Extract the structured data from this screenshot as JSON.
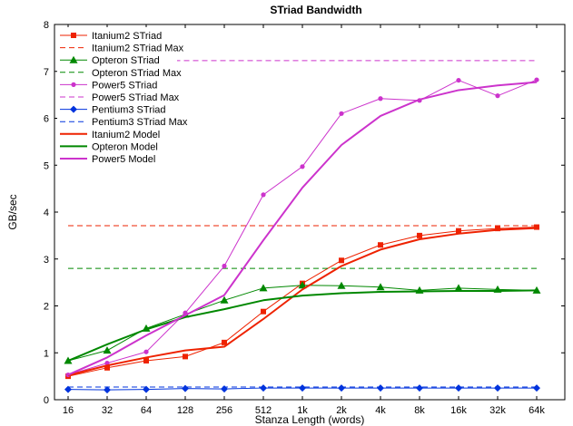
{
  "chart_data": {
    "type": "line",
    "title": "STriad Bandwidth",
    "xlabel": "Stanza Length (words)",
    "ylabel": "GB/sec",
    "categories": [
      "16",
      "32",
      "64",
      "128",
      "256",
      "512",
      "1k",
      "2k",
      "4k",
      "8k",
      "16k",
      "32k",
      "64k"
    ],
    "ylim": [
      0,
      8
    ],
    "yticks": [
      0,
      1,
      2,
      3,
      4,
      5,
      6,
      7,
      8
    ],
    "grid": false,
    "legend_position": "top-left",
    "series": [
      {
        "name": "Itanium2 STriad",
        "color": "#ee2200",
        "style": "solid",
        "width": 1,
        "marker": "square",
        "values": [
          0.5,
          0.68,
          0.83,
          0.92,
          1.22,
          1.88,
          2.48,
          2.97,
          3.3,
          3.5,
          3.6,
          3.65,
          3.68
        ]
      },
      {
        "name": "Itanium2 STriad Max",
        "color": "#ee2200",
        "style": "dashed",
        "width": 1,
        "marker": "none",
        "x_start_index": 0,
        "values": [
          3.71,
          3.71,
          3.71,
          3.71,
          3.71,
          3.71,
          3.71,
          3.71,
          3.71,
          3.71,
          3.71,
          3.71,
          3.71
        ]
      },
      {
        "name": "Opteron STriad",
        "color": "#008800",
        "style": "solid",
        "width": 1,
        "marker": "triangle",
        "values": [
          0.83,
          1.05,
          1.52,
          1.82,
          2.12,
          2.38,
          2.44,
          2.43,
          2.4,
          2.33,
          2.38,
          2.35,
          2.33
        ]
      },
      {
        "name": "Opteron STriad Max",
        "color": "#008800",
        "style": "dashed",
        "width": 1,
        "marker": "none",
        "values": [
          2.8,
          2.8,
          2.8,
          2.8,
          2.8,
          2.8,
          2.8,
          2.8,
          2.8,
          2.8,
          2.8,
          2.8,
          2.8
        ]
      },
      {
        "name": "Power5 STriad",
        "color": "#cc33cc",
        "style": "solid",
        "width": 1,
        "marker": "dot",
        "values": [
          0.53,
          0.78,
          1.02,
          1.85,
          2.85,
          4.37,
          4.97,
          6.1,
          6.42,
          6.38,
          6.81,
          6.48,
          6.82
        ]
      },
      {
        "name": "Power5 STriad Max",
        "color": "#cc33cc",
        "style": "dashed",
        "width": 1,
        "marker": "none",
        "x_start_index": 2.5,
        "values": [
          7.23,
          7.23,
          7.23,
          7.23,
          7.23,
          7.23,
          7.23,
          7.23,
          7.23,
          7.23,
          7.23,
          7.23,
          7.23
        ]
      },
      {
        "name": "Pentium3 STriad",
        "color": "#0033dd",
        "style": "solid",
        "width": 1,
        "marker": "diamond",
        "values": [
          0.22,
          0.21,
          0.22,
          0.24,
          0.23,
          0.25,
          0.25,
          0.25,
          0.25,
          0.25,
          0.25,
          0.25,
          0.25
        ]
      },
      {
        "name": "Pentium3 STriad Max",
        "color": "#0033dd",
        "style": "dashed",
        "width": 1,
        "marker": "none",
        "values": [
          0.27,
          0.27,
          0.27,
          0.27,
          0.27,
          0.27,
          0.27,
          0.27,
          0.27,
          0.27,
          0.27,
          0.27,
          0.27
        ]
      },
      {
        "name": "Itanium2 Model",
        "color": "#ee2200",
        "style": "solid",
        "width": 2,
        "marker": "none",
        "values": [
          0.52,
          0.73,
          0.9,
          1.05,
          1.13,
          1.72,
          2.35,
          2.85,
          3.2,
          3.42,
          3.54,
          3.62,
          3.66
        ]
      },
      {
        "name": "Opteron Model",
        "color": "#008800",
        "style": "solid",
        "width": 2,
        "marker": "none",
        "values": [
          0.83,
          1.18,
          1.5,
          1.76,
          1.93,
          2.12,
          2.22,
          2.27,
          2.3,
          2.31,
          2.32,
          2.32,
          2.33
        ]
      },
      {
        "name": "Power5 Model",
        "color": "#cc33cc",
        "style": "solid",
        "width": 2,
        "marker": "none",
        "values": [
          0.53,
          0.9,
          1.37,
          1.8,
          2.23,
          3.4,
          4.52,
          5.43,
          6.05,
          6.4,
          6.6,
          6.7,
          6.77
        ]
      }
    ]
  }
}
